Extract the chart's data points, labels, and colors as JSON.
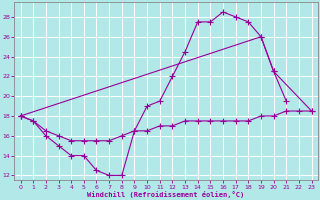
{
  "xlabel": "Windchill (Refroidissement éolien,°C)",
  "bg_color": "#b2e8e8",
  "line_color": "#990099",
  "grid_color": "#c8e8e8",
  "xlim": [
    -0.5,
    23.5
  ],
  "ylim": [
    11.5,
    29.5
  ],
  "xticks": [
    0,
    1,
    2,
    3,
    4,
    5,
    6,
    7,
    8,
    9,
    10,
    11,
    12,
    13,
    14,
    15,
    16,
    17,
    18,
    19,
    20,
    21,
    22,
    23
  ],
  "yticks": [
    12,
    14,
    16,
    18,
    20,
    22,
    24,
    26,
    28
  ],
  "curves": [
    {
      "x": [
        0,
        1,
        2,
        3,
        4,
        5,
        6,
        7,
        8,
        9,
        10,
        11,
        12,
        13,
        14,
        15,
        16,
        17,
        18,
        19,
        20,
        21
      ],
      "y": [
        18,
        17.5,
        16,
        15,
        14,
        14,
        12.5,
        12,
        12,
        16.5,
        19,
        19.5,
        22,
        24.5,
        27.5,
        27.5,
        28.5,
        28,
        27.5,
        26,
        22.5,
        19.5
      ]
    },
    {
      "x": [
        0,
        19,
        20,
        23
      ],
      "y": [
        18,
        26,
        22.5,
        18.5
      ]
    },
    {
      "x": [
        0,
        1,
        2,
        3,
        4,
        5,
        6,
        7,
        8,
        9,
        10,
        11,
        12,
        13,
        14,
        15,
        16,
        17,
        18,
        19,
        20,
        21,
        22,
        23
      ],
      "y": [
        18,
        17.5,
        16.5,
        16,
        15.5,
        15.5,
        15.5,
        15.5,
        16,
        16.5,
        16.5,
        17,
        17,
        17.5,
        17.5,
        17.5,
        17.5,
        17.5,
        17.5,
        18,
        18,
        18.5,
        18.5,
        18.5
      ]
    }
  ]
}
